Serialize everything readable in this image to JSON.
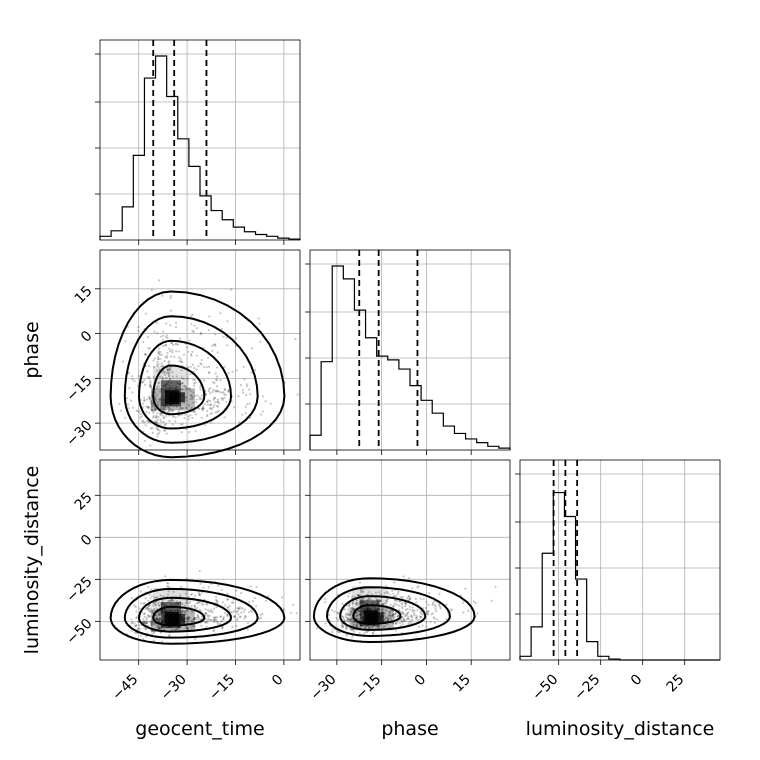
{
  "chart_data": {
    "type": "corner",
    "parameters": [
      "geocent_time",
      "phase",
      "luminosity_distance"
    ],
    "ranges": {
      "geocent_time": [
        -57,
        5
      ],
      "phase": [
        -39,
        28
      ],
      "luminosity_distance": [
        -73,
        46
      ]
    },
    "ticks": {
      "geocent_time": [
        -45,
        -30,
        -15,
        0
      ],
      "phase": [
        -30,
        -15,
        0,
        15
      ],
      "luminosity_distance": [
        -50,
        -25,
        0,
        25
      ]
    },
    "tick_labels": {
      "geocent_time": [
        "−45",
        "−30",
        "−15",
        "0"
      ],
      "phase": [
        "−30",
        "−15",
        "0",
        "15"
      ],
      "luminosity_distance": [
        "−50",
        "−25",
        "0",
        "25"
      ]
    },
    "axis_labels": {
      "x": [
        "geocent_time",
        "phase",
        "luminosity_distance"
      ],
      "y": [
        "phase",
        "luminosity_distance"
      ]
    },
    "quantiles": {
      "geocent_time": [
        -40.5,
        -34,
        -24
      ],
      "phase": [
        -22.5,
        -16,
        -3
      ],
      "luminosity_distance": [
        -53,
        -46,
        -39
      ]
    },
    "histograms": {
      "geocent_time": [
        0.02,
        0.05,
        0.18,
        0.46,
        0.88,
        1.0,
        0.78,
        0.55,
        0.4,
        0.24,
        0.16,
        0.11,
        0.07,
        0.045,
        0.03,
        0.02,
        0.01,
        0.005
      ],
      "phase": [
        0.08,
        0.48,
        1.0,
        0.93,
        0.76,
        0.61,
        0.51,
        0.49,
        0.44,
        0.35,
        0.27,
        0.2,
        0.13,
        0.09,
        0.06,
        0.04,
        0.02,
        0.01
      ],
      "luminosity_distance": [
        0.02,
        0.18,
        0.58,
        0.91,
        0.78,
        0.44,
        0.1,
        0.02,
        0.005,
        0,
        0,
        0,
        0,
        0,
        0,
        0,
        0,
        0
      ]
    },
    "density_centers": {
      "phase_vs_geocent_time": [
        -35,
        -21
      ],
      "luminosity_distance_vs_geocent_time": [
        -35,
        -48
      ],
      "luminosity_distance_vs_phase": [
        -19,
        -47
      ]
    },
    "grid": true
  }
}
